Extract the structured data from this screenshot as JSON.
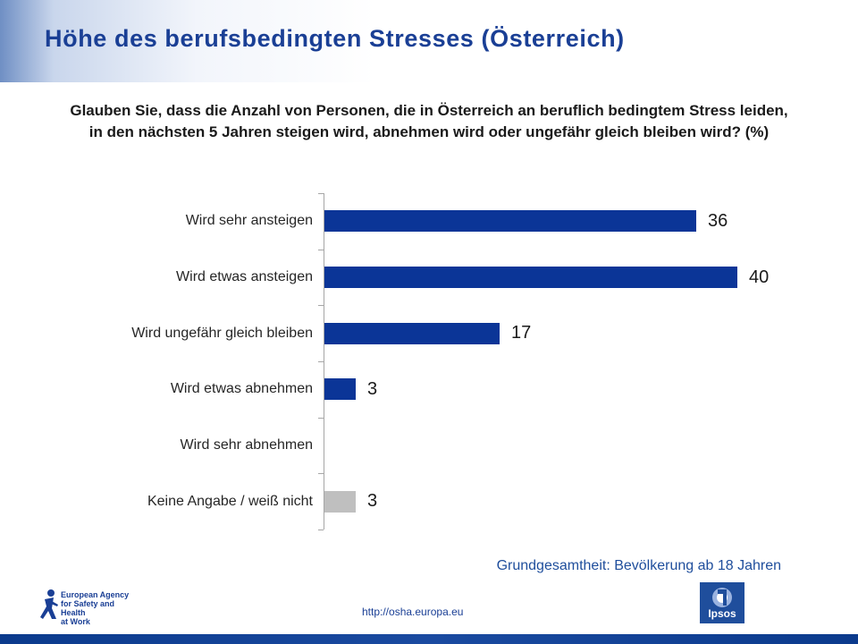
{
  "title": "Höhe des berufsbedingten Stresses (Österreich)",
  "question": "Glauben Sie, dass die Anzahl von Personen, die in Österreich an beruflich bedingtem Stress leiden, in den nächsten 5 Jahren steigen wird, abnehmen wird oder ungefähr gleich bleiben wird? (%)",
  "base_note": "Grundgesamtheit: Bevölkerung ab 18 Jahren",
  "url": "http://osha.europa.eu",
  "logos": {
    "eu_agency_lines": [
      "European Agency",
      "for Safety and Health",
      "at Work"
    ],
    "ipsos": "Ipsos"
  },
  "colors": {
    "title": "#1a3f95",
    "bar_primary": "#0b3597",
    "bar_no_answer": "#bfbfbf"
  },
  "chart_data": {
    "type": "bar",
    "orientation": "horizontal",
    "categories": [
      "Wird sehr ansteigen",
      "Wird etwas ansteigen",
      "Wird ungefähr gleich bleiben",
      "Wird etwas abnehmen",
      "Wird sehr abnehmen",
      "Keine Angabe / weiß nicht"
    ],
    "values": [
      36,
      40,
      17,
      3,
      null,
      3
    ],
    "value_labels": [
      "36",
      "40",
      "17",
      "3",
      "",
      "3"
    ],
    "bar_colors": [
      "#0b3597",
      "#0b3597",
      "#0b3597",
      "#0b3597",
      "#0b3597",
      "#bfbfbf"
    ],
    "xlim": [
      0,
      40
    ],
    "grid": false,
    "legend": "none"
  }
}
